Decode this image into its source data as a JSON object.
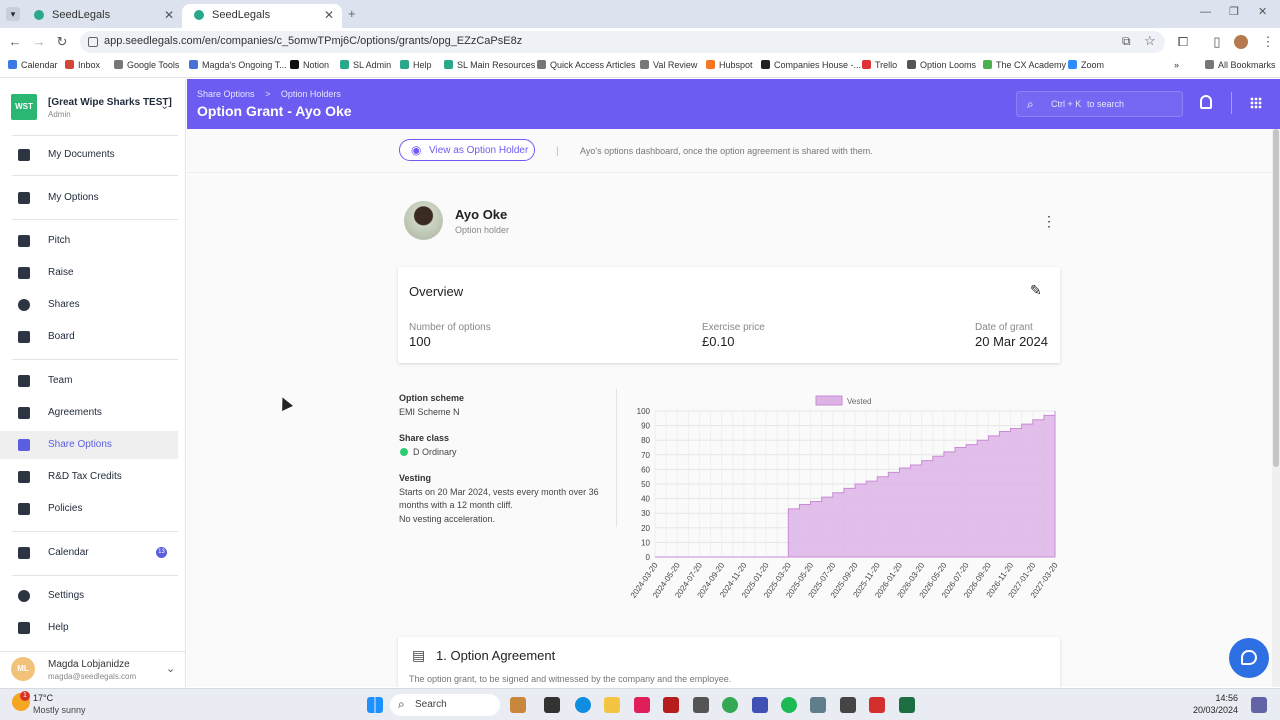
{
  "browser": {
    "tabs": [
      {
        "label": "SeedLegals",
        "active": false
      },
      {
        "label": "SeedLegals",
        "active": true
      }
    ],
    "url": "app.seedlegals.com/en/companies/c_5omwTPmj6C/options/grants/opg_EZzCaPsE8z",
    "bookmarks": [
      "Calendar",
      "Inbox",
      "Google Tools",
      "Magda's Ongoing T...",
      "Notion",
      "SL Admin",
      "Help",
      "SL Main Resources",
      "Quick Access Articles",
      "Val Review",
      "Hubspot",
      "Companies House -...",
      "Trello",
      "Option Looms",
      "The CX Academy",
      "Zoom"
    ],
    "all_bookmarks": "All Bookmarks"
  },
  "sidebar": {
    "logo": "WST",
    "company_name": "[Great Wipe Sharks TEST]",
    "role": "Admin",
    "items": [
      {
        "label": "My Documents",
        "icon": "documents-icon"
      },
      {
        "label": "My Options",
        "icon": "chart-line-icon"
      },
      {
        "label": "Pitch",
        "icon": "pitch-icon"
      },
      {
        "label": "Raise",
        "icon": "wallet-icon"
      },
      {
        "label": "Shares",
        "icon": "pie-chart-icon"
      },
      {
        "label": "Board",
        "icon": "people-icon"
      },
      {
        "label": "Team",
        "icon": "badge-icon"
      },
      {
        "label": "Agreements",
        "icon": "clipboard-icon"
      },
      {
        "label": "Share Options",
        "icon": "chart-line-icon"
      },
      {
        "label": "R&D Tax Credits",
        "icon": "flask-icon"
      },
      {
        "label": "Policies",
        "icon": "book-icon"
      },
      {
        "label": "Calendar",
        "icon": "calendar-icon",
        "badge": "13"
      },
      {
        "label": "Settings",
        "icon": "gear-icon"
      },
      {
        "label": "Help",
        "icon": "help-icon"
      }
    ],
    "user": {
      "initials": "ML",
      "name": "Magda Lobjanidze",
      "email": "magda@seedlegals.com"
    }
  },
  "header": {
    "breadcrumb": [
      "Share Options",
      ">",
      "Option Holders"
    ],
    "title": "Option Grant - Ayo Oke",
    "search_label": "Ctrl + K",
    "search_suffix": "to search"
  },
  "main": {
    "view_button": "View as Option Holder",
    "view_divider": "|",
    "view_hint": "Ayo's options dashboard, once the option agreement is shared with them.",
    "holder": {
      "name": "Ayo Oke",
      "role": "Option holder"
    },
    "overview": {
      "title": "Overview",
      "number_label": "Number of options",
      "number_value": "100",
      "price_label": "Exercise price",
      "price_value": "£0.10",
      "date_label": "Date of grant",
      "date_value": "20 Mar 2024"
    },
    "details": {
      "scheme_label": "Option scheme",
      "scheme_value": "EMI Scheme N",
      "class_label": "Share class",
      "class_value": "D Ordinary",
      "class_color": "#2ecc71",
      "vesting_label": "Vesting",
      "vesting_line1": "Starts on 20 Mar 2024, vests every month over 36",
      "vesting_line2": "months with a 12 month cliff.",
      "vesting_line3": "No vesting acceleration."
    },
    "agreement": {
      "title": "1. Option Agreement",
      "subtitle": "The option grant, to be signed and witnessed by the company and the employee."
    }
  },
  "chart_data": {
    "type": "area",
    "legend": "Vested",
    "legend_position": "top-center",
    "color": "#ddb3e6",
    "ylim": [
      0,
      100
    ],
    "yticks": [
      0,
      10,
      20,
      30,
      40,
      50,
      60,
      70,
      80,
      90,
      100
    ],
    "xticks": [
      "2024-03-20",
      "2024-05-20",
      "2024-07-20",
      "2024-09-20",
      "2024-11-20",
      "2025-01-20",
      "2025-03-20",
      "2025-05-20",
      "2025-07-20",
      "2025-09-20",
      "2025-11-20",
      "2026-01-20",
      "2026-03-20",
      "2026-05-20",
      "2026-07-20",
      "2026-09-20",
      "2026-11-20",
      "2027-01-20",
      "2027-03-20"
    ],
    "grid": true,
    "series": [
      {
        "name": "Vested",
        "x_months": [
          0,
          1,
          2,
          3,
          4,
          5,
          6,
          7,
          8,
          9,
          10,
          11,
          12,
          13,
          14,
          15,
          16,
          17,
          18,
          19,
          20,
          21,
          22,
          23,
          24,
          25,
          26,
          27,
          28,
          29,
          30,
          31,
          32,
          33,
          34,
          35,
          36
        ],
        "values": [
          0,
          0,
          0,
          0,
          0,
          0,
          0,
          0,
          0,
          0,
          0,
          0,
          33,
          36,
          38,
          41,
          44,
          47,
          50,
          52,
          55,
          58,
          61,
          63,
          66,
          69,
          72,
          75,
          77,
          80,
          83,
          86,
          88,
          91,
          94,
          97,
          100
        ]
      }
    ]
  },
  "taskbar": {
    "weather_temp": "17°C",
    "weather_desc": "Mostly sunny",
    "weather_badge": "1",
    "search": "Search",
    "time": "14:56",
    "date": "20/03/2024"
  }
}
